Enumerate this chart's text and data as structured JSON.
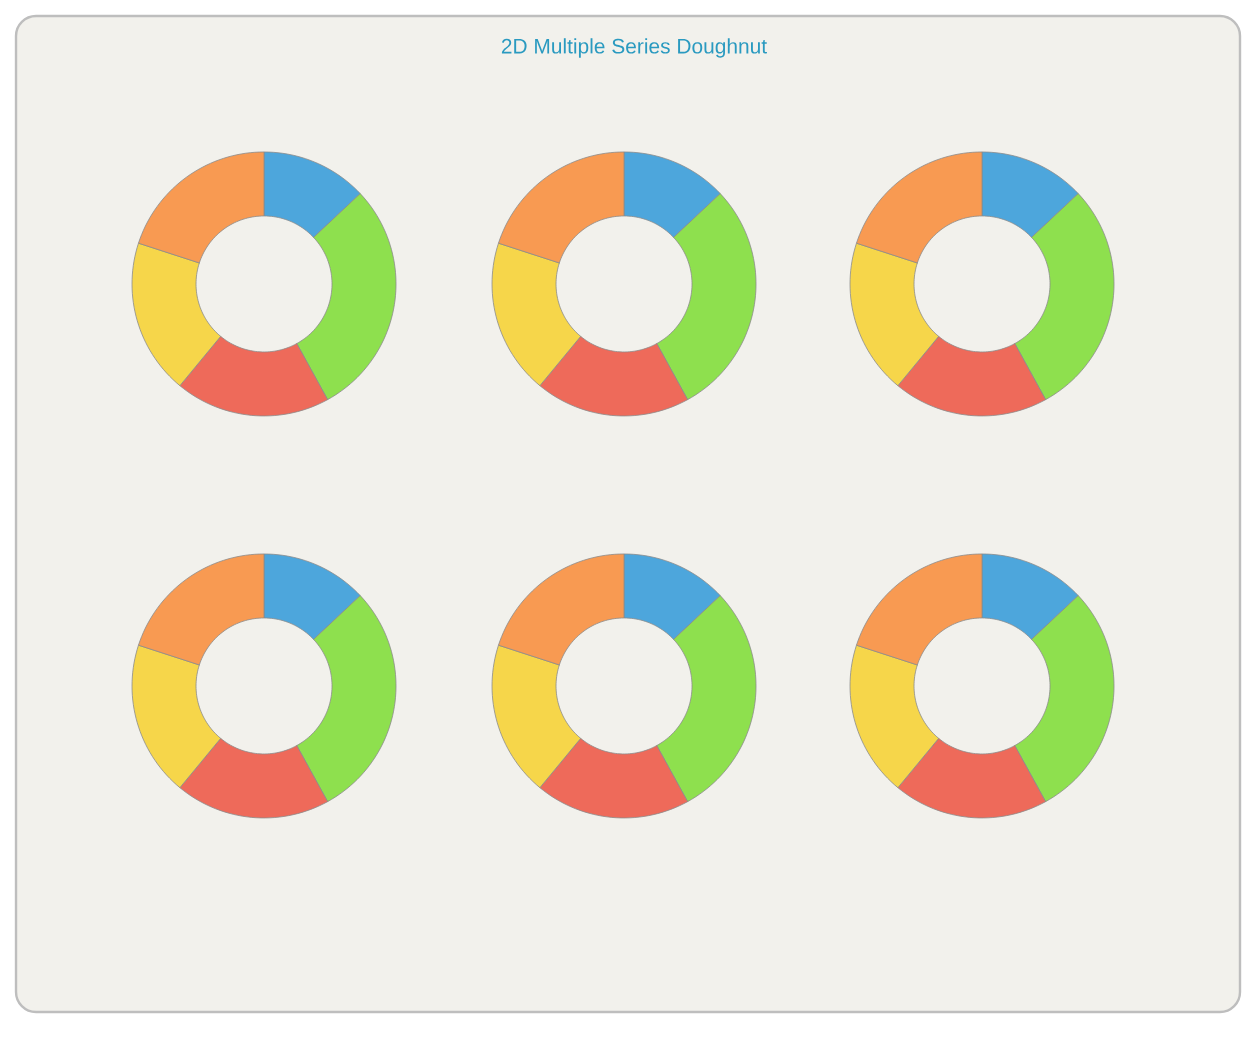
{
  "chart_data": [
    {
      "type": "donut",
      "categories": [
        null,
        null,
        null,
        null,
        null
      ],
      "values": [
        13,
        29,
        19,
        19,
        20
      ],
      "colors": [
        "#4da6dc",
        "#8ee04e",
        "#ee6a5a",
        "#f6d64a",
        "#f89a52"
      ]
    },
    {
      "type": "donut",
      "title": "2D Multiple Series Doughnut",
      "categories": [
        null,
        null,
        null,
        null,
        null
      ],
      "values": [
        13,
        29,
        19,
        19,
        20
      ],
      "colors": [
        "#4da6dc",
        "#8ee04e",
        "#ee6a5a",
        "#f6d64a",
        "#f89a52"
      ]
    },
    {
      "type": "donut",
      "categories": [
        null,
        null,
        null,
        null,
        null
      ],
      "values": [
        13,
        29,
        19,
        19,
        20
      ],
      "colors": [
        "#4da6dc",
        "#8ee04e",
        "#ee6a5a",
        "#f6d64a",
        "#f89a52"
      ]
    },
    {
      "type": "donut",
      "categories": [
        null,
        null,
        null,
        null,
        null
      ],
      "values": [
        13,
        29,
        19,
        19,
        20
      ],
      "colors": [
        "#4da6dc",
        "#8ee04e",
        "#ee6a5a",
        "#f6d64a",
        "#f89a52"
      ]
    },
    {
      "type": "donut",
      "categories": [
        null,
        null,
        null,
        null,
        null
      ],
      "values": [
        13,
        29,
        19,
        19,
        20
      ],
      "colors": [
        "#4da6dc",
        "#8ee04e",
        "#ee6a5a",
        "#f6d64a",
        "#f89a52"
      ]
    },
    {
      "type": "donut",
      "categories": [
        null,
        null,
        null,
        null,
        null
      ],
      "values": [
        13,
        29,
        19,
        19,
        20
      ],
      "colors": [
        "#4da6dc",
        "#8ee04e",
        "#ee6a5a",
        "#f6d64a",
        "#f89a52"
      ]
    }
  ]
}
